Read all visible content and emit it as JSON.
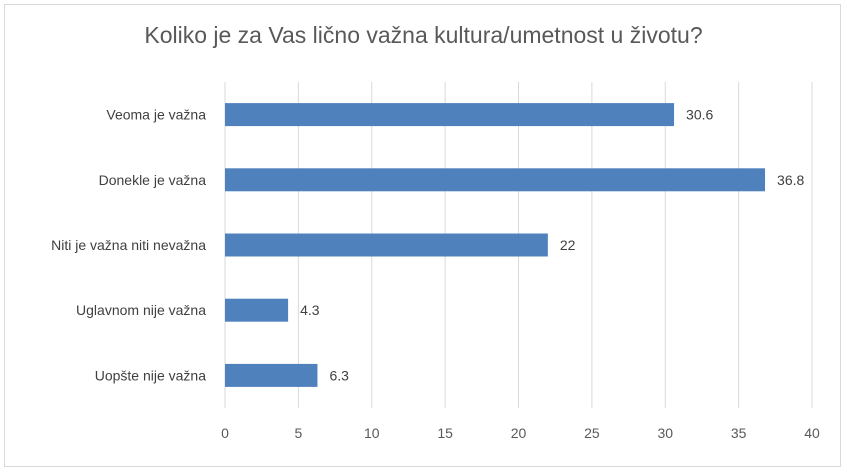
{
  "chart_data": {
    "type": "bar",
    "orientation": "horizontal",
    "title": "Koliko je za Vas lično važna kultura/umetnost u životu?",
    "categories": [
      "Veoma je važna",
      "Donekle je važna",
      "Niti je važna niti nevažna",
      "Uglavnom nije važna",
      "Uopšte nije važna"
    ],
    "values": [
      30.6,
      36.8,
      22,
      4.3,
      6.3
    ],
    "value_labels": [
      "30.6",
      "36.8",
      "22",
      "4.3",
      "6.3"
    ],
    "xlim": [
      0,
      40
    ],
    "xticks": [
      "0",
      "5",
      "10",
      "15",
      "20",
      "25",
      "30",
      "35",
      "40"
    ],
    "grid": "vertical",
    "bar_color": "#4f81bd",
    "legend": "none"
  }
}
